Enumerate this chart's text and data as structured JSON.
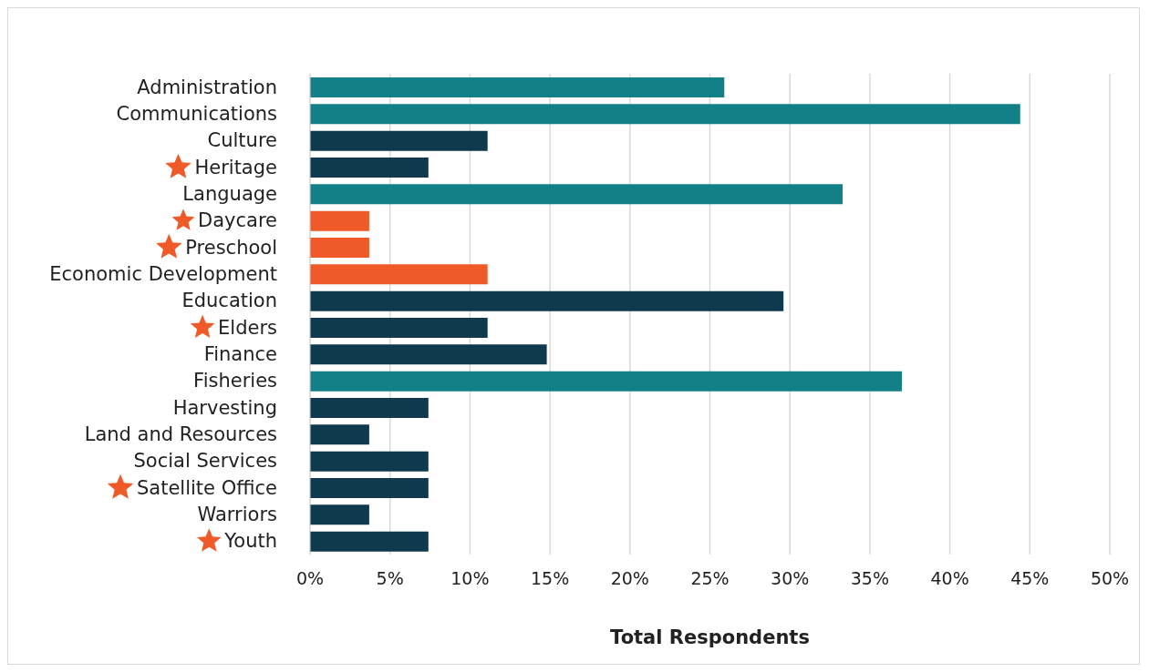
{
  "chart_data": {
    "type": "bar",
    "orientation": "horizontal",
    "xlabel": "Total Respondents",
    "categories": [
      "Administration",
      "Communications",
      "Culture",
      "Heritage",
      "Language",
      "Daycare",
      "Preschool",
      "Economic Development",
      "Education",
      "Elders",
      "Finance",
      "Fisheries",
      "Harvesting",
      "Land and Resources",
      "Social Services",
      "Satellite Office",
      "Warriors",
      "Youth"
    ],
    "values": [
      25.9,
      44.4,
      11.1,
      7.4,
      33.3,
      3.7,
      3.7,
      11.1,
      29.6,
      11.1,
      14.8,
      37.0,
      7.4,
      3.7,
      7.4,
      7.4,
      3.7,
      7.4
    ],
    "colors": [
      "#137f87",
      "#137f87",
      "#0f3a4d",
      "#0f3a4d",
      "#137f87",
      "#f05a28",
      "#f05a28",
      "#f05a28",
      "#0f3a4d",
      "#0f3a4d",
      "#0f3a4d",
      "#137f87",
      "#0f3a4d",
      "#0f3a4d",
      "#0f3a4d",
      "#0f3a4d",
      "#0f3a4d",
      "#0f3a4d"
    ],
    "xlim": [
      0,
      50
    ],
    "xticks": [
      {
        "value": 0,
        "label": "0%"
      },
      {
        "value": 5,
        "label": "5%"
      },
      {
        "value": 10,
        "label": "10%"
      },
      {
        "value": 15,
        "label": "15%"
      },
      {
        "value": 20,
        "label": "20%"
      },
      {
        "value": 25,
        "label": "25%"
      },
      {
        "value": 30,
        "label": "30%"
      },
      {
        "value": 35,
        "label": "35%"
      },
      {
        "value": 40,
        "label": "40%"
      },
      {
        "value": 45,
        "label": "45%"
      },
      {
        "value": 50,
        "label": "50%"
      }
    ],
    "grid": "x"
  }
}
